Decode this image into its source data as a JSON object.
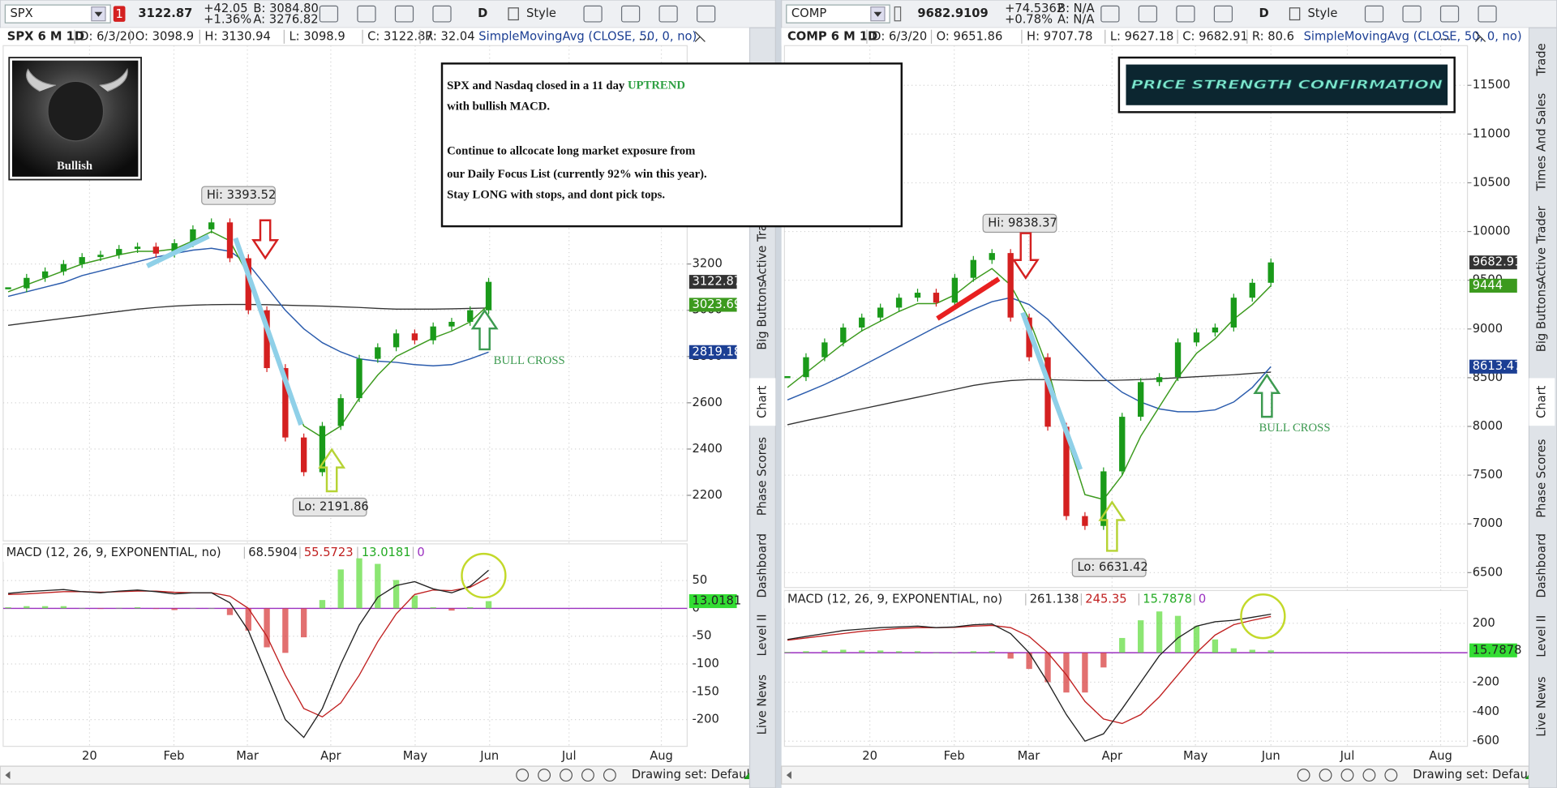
{
  "note": {
    "lines": [
      "SPX and Nasdaq closed in a 11 day ",
      "with bullish MACD.",
      "Continue to allcocate long market exposure from",
      "our Daily Focus List (currently 92% win this year).",
      "Stay LONG with stops, and dont pick tops."
    ],
    "highlight": "UPTREND"
  },
  "bullish_label": "Bullish",
  "banner": "PRICE STRENGTH CONFIRMATION",
  "panels": [
    {
      "toolbar": {
        "symbol": "SPX",
        "badge": "1",
        "last": "3122.87",
        "change": "+42.05",
        "change_pct": "+1.36%",
        "bid": "B: 3084.80",
        "ask": "A: 3276.82",
        "aggregation": "D",
        "style": "Style"
      },
      "study_line": [
        "SPX 6 M 1D",
        "D: 6/3/20",
        "O: 3098.9",
        "H: 3130.94",
        "L: 3098.9",
        "C: 3122.87",
        "R: 32.04"
      ],
      "study": "SimpleMovingAvg (CLOSE, 50, 0, no)",
      "ellipsis": "...",
      "price": {
        "ylim": [
          2003,
          4144
        ],
        "yticks": [
          2200,
          2400,
          2600,
          2800,
          3000,
          3200
        ],
        "close": [
          3095,
          3140,
          3168,
          3200,
          3230,
          3240,
          3265,
          3275,
          3245,
          3290,
          3350,
          3380,
          3225,
          3000,
          2750,
          2450,
          2300,
          2500,
          2620,
          2790,
          2840,
          2900,
          2870,
          2930,
          2950,
          3000,
          3122.87
        ],
        "ema": [
          3080,
          3110,
          3140,
          3170,
          3200,
          3220,
          3240,
          3255,
          3255,
          3265,
          3300,
          3340,
          3300,
          3150,
          2950,
          2700,
          2500,
          2450,
          2500,
          2620,
          2720,
          2800,
          2840,
          2880,
          2910,
          2950,
          3023.69
        ],
        "sma50": [
          3060,
          3080,
          3100,
          3120,
          3150,
          3170,
          3190,
          3210,
          3230,
          3245,
          3260,
          3268,
          3255,
          3200,
          3100,
          3000,
          2920,
          2860,
          2820,
          2790,
          2780,
          2775,
          2765,
          2760,
          2765,
          2790,
          2819.18
        ],
        "sma200": [
          2935,
          2945,
          2955,
          2965,
          2975,
          2985,
          2995,
          3005,
          3012,
          3018,
          3022,
          3024,
          3025,
          3025,
          3024,
          3022,
          3020,
          3018,
          3015,
          3012,
          3008,
          3005,
          3005,
          3005,
          3006,
          3008,
          3010
        ],
        "axis_labels": [
          {
            "value": 3122.87,
            "color": "#333333"
          },
          {
            "value": 3023.69,
            "color": "#3c9a1e"
          },
          {
            "value": 2819.18,
            "color": "#1c3f94"
          }
        ]
      },
      "high_label": "Hi: 3393.52",
      "low_label": "Lo: 2191.86",
      "bull_cross": "BULL CROSS",
      "macd": {
        "title": "MACD (12, 26, 9, EXPONENTIAL, no)",
        "readings": [
          68.5904,
          55.5723,
          13.0181,
          0
        ],
        "ylim": [
          -248,
          116
        ],
        "yticks": [
          50,
          0,
          -50,
          -100,
          -150,
          -200
        ],
        "macd": [
          27,
          30,
          32,
          34,
          30,
          28,
          31,
          33,
          30,
          26,
          28,
          28,
          10,
          -40,
          -120,
          -200,
          -232,
          -180,
          -100,
          -30,
          20,
          41,
          48,
          35,
          28,
          40,
          68.5904
        ],
        "signal": [
          25,
          26,
          28,
          30,
          30,
          29,
          30,
          31,
          31,
          29,
          28,
          28,
          22,
          0,
          -50,
          -120,
          -180,
          -195,
          -170,
          -120,
          -60,
          -10,
          25,
          33,
          32,
          38,
          55.5723
        ],
        "histogram": [
          2,
          4,
          4,
          4,
          0,
          -1,
          1,
          2,
          -1,
          -3,
          0,
          0,
          -12,
          -40,
          -70,
          -80,
          -52,
          15,
          70,
          90,
          80,
          51,
          23,
          2,
          -4,
          2,
          13.0181
        ],
        "axis_label": 13.0181
      },
      "months": [
        "20",
        "Feb",
        "Mar",
        "Apr",
        "May",
        "Jun",
        "Jul",
        "Aug"
      ],
      "drawing_set": "Drawing set: Default",
      "side_tabs": [
        "Active Trader",
        "Big Buttons",
        "Chart",
        "Phase Scores",
        "Dashboard",
        "Level II",
        "Live News"
      ]
    },
    {
      "toolbar": {
        "symbol": "COMP",
        "badge": "",
        "last": "9682.9109",
        "change": "+74.5362",
        "change_pct": "+0.78%",
        "bid": "B: N/A",
        "ask": "A: N/A",
        "aggregation": "D",
        "style": "Style"
      },
      "study_line": [
        "COMP 6 M 1D",
        "D: 6/3/20",
        "O: 9651.86",
        "H: 9707.78",
        "L: 9627.18",
        "C: 9682.91",
        "R: 80.6"
      ],
      "study": "SimpleMovingAvg (CLOSE, 50, 0, no)",
      "ellipsis": "...",
      "price": {
        "ylim": [
          6347,
          11907
        ],
        "yticks": [
          6500,
          7000,
          7500,
          8000,
          8500,
          9000,
          9500,
          10000,
          10500,
          11000,
          11500
        ],
        "close": [
          8506,
          8710,
          8862,
          9015,
          9117,
          9219,
          9321,
          9372,
          9270,
          9525,
          9708,
          9779,
          9117,
          8710,
          7997,
          7080,
          6979,
          7539,
          8099,
          8455,
          8506,
          8862,
          8964,
          9015,
          9321,
          9474,
          9682.91
        ],
        "ema": [
          8400,
          8550,
          8700,
          8850,
          8980,
          9080,
          9180,
          9260,
          9260,
          9350,
          9500,
          9620,
          9450,
          9100,
          8600,
          7900,
          7300,
          7250,
          7500,
          7900,
          8200,
          8500,
          8750,
          8900,
          9100,
          9250,
          9444
        ],
        "sma50": [
          8272,
          8350,
          8430,
          8520,
          8620,
          8720,
          8820,
          8920,
          9020,
          9110,
          9200,
          9280,
          9321,
          9250,
          9100,
          8900,
          8700,
          8500,
          8350,
          8250,
          8180,
          8150,
          8150,
          8170,
          8250,
          8400,
          8613.47
        ],
        "sma200": [
          8017,
          8060,
          8100,
          8140,
          8180,
          8220,
          8260,
          8300,
          8340,
          8380,
          8420,
          8450,
          8470,
          8480,
          8480,
          8475,
          8470,
          8470,
          8475,
          8480,
          8490,
          8500,
          8510,
          8520,
          8530,
          8545,
          8557
        ],
        "axis_labels": [
          {
            "value": 9682.91,
            "color": "#333333"
          },
          {
            "value": 9444,
            "color": "#3c9a1e"
          },
          {
            "value": 8613.47,
            "color": "#1c3f94"
          }
        ]
      },
      "high_label": "Hi: 9838.37",
      "low_label": "Lo: 6631.42",
      "bull_cross": "BULL CROSS",
      "macd": {
        "title": "MACD (12, 26, 9, EXPONENTIAL, no)",
        "readings": [
          261.138,
          245.35,
          15.7878,
          0
        ],
        "ylim": [
          -635,
          422
        ],
        "yticks": [
          200,
          0,
          -200,
          -400,
          -600
        ],
        "macd": [
          90,
          110,
          130,
          150,
          160,
          170,
          175,
          180,
          170,
          175,
          190,
          195,
          130,
          0,
          -200,
          -420,
          -600,
          -550,
          -380,
          -200,
          -20,
          100,
          180,
          210,
          220,
          240,
          261.138
        ],
        "signal": [
          85,
          100,
          115,
          130,
          145,
          155,
          165,
          170,
          170,
          172,
          180,
          185,
          170,
          110,
          0,
          -150,
          -330,
          -450,
          -480,
          -420,
          -300,
          -150,
          0,
          120,
          190,
          220,
          245.35
        ],
        "histogram": [
          5,
          10,
          15,
          20,
          15,
          15,
          10,
          10,
          0,
          3,
          10,
          10,
          -40,
          -110,
          -200,
          -270,
          -270,
          -100,
          100,
          220,
          280,
          250,
          180,
          90,
          30,
          20,
          15.7878
        ],
        "axis_label": 15.7878
      },
      "months": [
        "20",
        "Feb",
        "Mar",
        "Apr",
        "May",
        "Jun",
        "Jul",
        "Aug"
      ],
      "drawing_set": "Drawing set: Default",
      "side_tabs": [
        "Trade",
        "Times And Sales",
        "Active Trader",
        "Big Buttons",
        "Chart",
        "Phase Scores",
        "Dashboard",
        "Level II",
        "Live News"
      ]
    }
  ]
}
